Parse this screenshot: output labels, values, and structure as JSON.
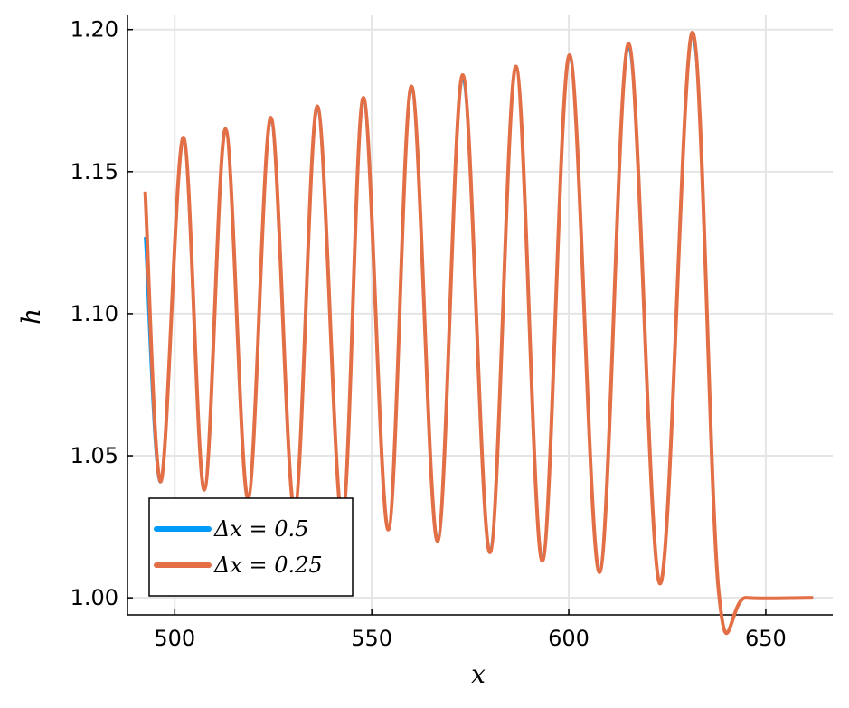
{
  "chart_data": {
    "type": "line",
    "title": "",
    "xlabel": "x",
    "ylabel": "h",
    "xlim": [
      488,
      667
    ],
    "ylim": [
      0.994,
      1.205
    ],
    "xticks": [
      500,
      550,
      600,
      650
    ],
    "xtick_labels": [
      "500",
      "550",
      "600",
      "650"
    ],
    "yticks": [
      1.0,
      1.05,
      1.1,
      1.15,
      1.2
    ],
    "ytick_labels": [
      "1.00",
      "1.05",
      "1.10",
      "1.15",
      "1.20"
    ],
    "grid": true,
    "legend_position": "bottom-left",
    "colors": {
      "series1": "#009af9",
      "series2": "#e26f46",
      "grid": "#e5e5e5",
      "axis": "#000000"
    },
    "series": [
      {
        "name": "Δx = 0.5",
        "x": [
          492.5,
          496.5,
          502.2,
          507.5,
          512.9,
          518.6,
          524.4,
          530.4,
          536.2,
          542.5,
          547.9,
          554.2,
          560.1,
          566.7,
          573.1,
          580.0,
          586.6,
          593.3,
          600.2,
          607.8,
          615.2,
          623.2,
          631.4,
          638.0,
          645.0,
          662.0
        ],
        "y": [
          1.127,
          1.041,
          1.161,
          1.038,
          1.165,
          1.035,
          1.168,
          1.031,
          1.172,
          1.028,
          1.175,
          1.024,
          1.179,
          1.02,
          1.183,
          1.016,
          1.187,
          1.013,
          1.191,
          1.009,
          1.194,
          1.005,
          1.198,
          1.003,
          1.0,
          1.0
        ]
      },
      {
        "name": "Δx = 0.25",
        "x": [
          492.5,
          496.5,
          502.2,
          507.5,
          512.9,
          518.6,
          524.4,
          530.4,
          536.2,
          542.5,
          547.9,
          554.2,
          560.1,
          566.7,
          573.1,
          580.0,
          586.6,
          593.3,
          600.2,
          607.8,
          615.2,
          623.2,
          631.4,
          638.0,
          645.0,
          662.0
        ],
        "y": [
          1.143,
          1.041,
          1.162,
          1.038,
          1.165,
          1.035,
          1.169,
          1.031,
          1.173,
          1.028,
          1.176,
          1.024,
          1.18,
          1.02,
          1.184,
          1.016,
          1.187,
          1.013,
          1.191,
          1.009,
          1.195,
          1.005,
          1.199,
          1.003,
          1.0,
          1.0
        ]
      }
    ],
    "legend": [
      {
        "label": "Δx = 0.5",
        "color": "#009af9"
      },
      {
        "label": "Δx = 0.25",
        "color": "#e26f46"
      }
    ]
  }
}
